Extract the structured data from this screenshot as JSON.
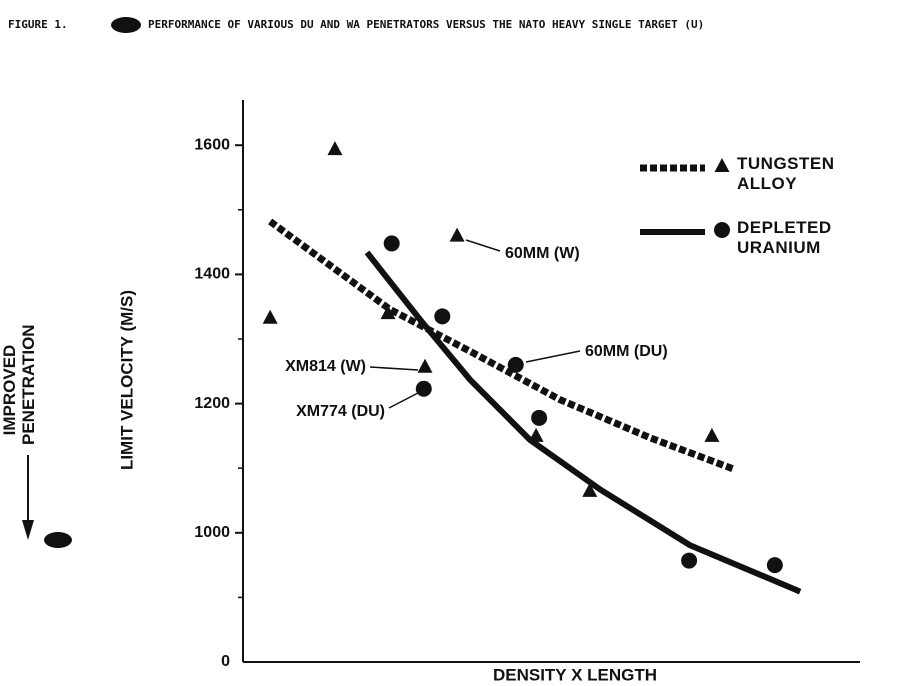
{
  "chart_data": {
    "type": "scatter",
    "figure_label": "FIGURE 1.",
    "title": "PERFORMANCE OF VARIOUS DU AND WA PENETRATORS VERSUS THE NATO HEAVY SINGLE TARGET (U)",
    "side_note": "IMPROVED PENETRATION",
    "y_label": "LIMIT VELOCITY (M/S)",
    "x_label": "DENSITY X LENGTH",
    "xlim": [
      0,
      100
    ],
    "ylim": [
      800,
      1670
    ],
    "yticks": [
      1000,
      1200,
      1400,
      1600
    ],
    "minor_yticks": [
      900,
      1100,
      1300,
      1500
    ],
    "axis_break_label": "0",
    "series": [
      {
        "name": "TUNGSTEN ALLOY",
        "marker": "triangle",
        "color": "#111111",
        "line_style": "dashed",
        "x": [
          4.4,
          14.9,
          23.5,
          29.5,
          34.7,
          47.5,
          56.2,
          76.0
        ],
        "values": [
          1333,
          1594,
          1340,
          1257,
          1460,
          1150,
          1065,
          1150
        ],
        "fit": {
          "x": [
            4.4,
            23.8,
            36.8,
            51.4,
            66.0,
            79.7
          ],
          "y": [
            1482,
            1346,
            1281,
            1206,
            1147,
            1098
          ]
        }
      },
      {
        "name": "DEPLETED URANIUM",
        "marker": "circle",
        "color": "#111111",
        "line_style": "solid",
        "x": [
          24.1,
          32.3,
          29.3,
          44.2,
          48.0,
          72.3,
          86.2
        ],
        "values": [
          1448,
          1335,
          1223,
          1260,
          1178,
          957,
          950
        ],
        "fit": {
          "x": [
            20.1,
            28.7,
            36.8,
            46.5,
            57.9,
            72.4,
            90.3
          ],
          "y": [
            1434,
            1330,
            1237,
            1144,
            1067,
            981,
            909
          ]
        }
      }
    ],
    "annotations": [
      "60MM (W)",
      "60MM (DU)",
      "XM814 (W)",
      "XM774 (DU)"
    ]
  }
}
